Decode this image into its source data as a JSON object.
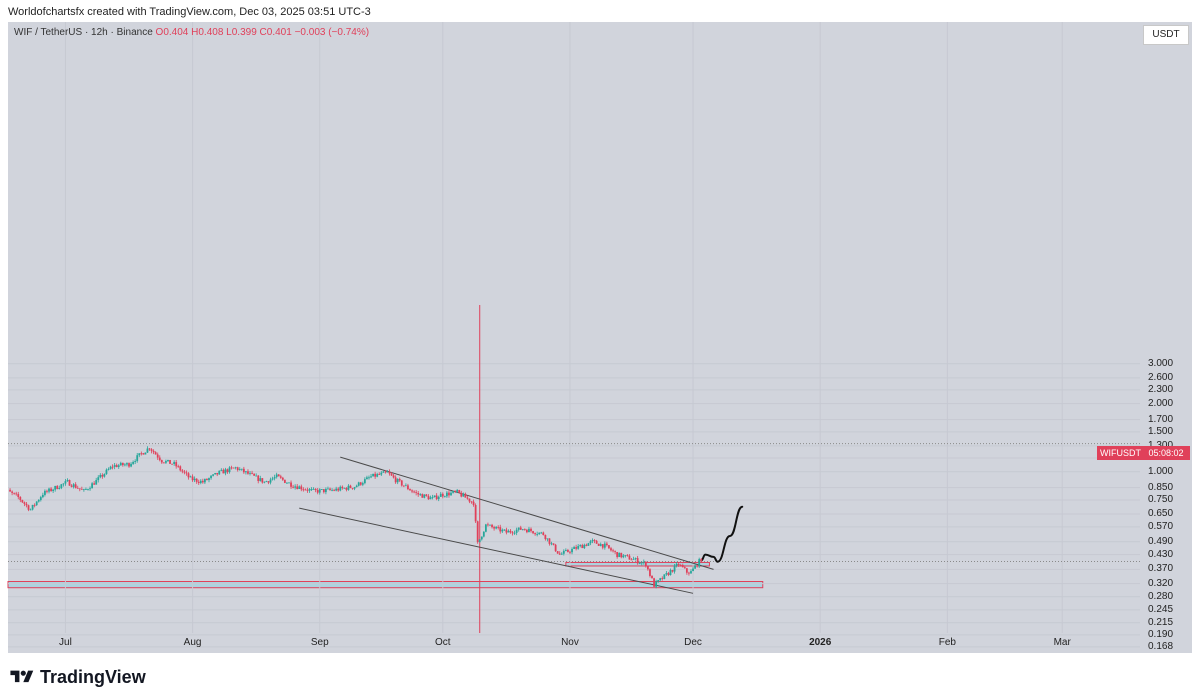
{
  "header": {
    "text": "Worldofchartsfx created with TradingView.com, Dec 03, 2025 03:51 UTC-3"
  },
  "symbol": {
    "name": "WIF / TetherUS · 12h · Binance",
    "open": "O0.404",
    "high": "H0.408",
    "low": "L0.399",
    "close": "C0.401",
    "change": "−0.003 (−0.74%)"
  },
  "currency": "USDT",
  "ticker": "WIFUSDT",
  "countdown": "05:08:02",
  "footer": {
    "brand": "TradingView"
  },
  "colors": {
    "up": "#26a69a",
    "down": "#e0405a",
    "background": "#d1d4dc",
    "zone_fill": "#9fd3e0",
    "zone_border": "#e0405a"
  },
  "chart_data": {
    "type": "candlestick",
    "y_scale": "log",
    "price_ticks": [
      "3.000",
      "2.600",
      "2.300",
      "2.000",
      "1.700",
      "1.500",
      "1.300",
      "1.150",
      "1.000",
      "0.850",
      "0.750",
      "0.650",
      "0.570",
      "0.490",
      "0.430",
      "0.370",
      "0.320",
      "0.280",
      "0.245",
      "0.215",
      "0.190",
      "0.168"
    ],
    "time_ticks": [
      {
        "label": "Jul",
        "date": "2025-07-01"
      },
      {
        "label": "Aug",
        "date": "2025-08-01"
      },
      {
        "label": "Sep",
        "date": "2025-09-01"
      },
      {
        "label": "Oct",
        "date": "2025-10-01"
      },
      {
        "label": "Nov",
        "date": "2025-11-01"
      },
      {
        "label": "Dec",
        "date": "2025-12-01"
      },
      {
        "label": "2026",
        "date": "2026-01-01",
        "bold": true
      },
      {
        "label": "Feb",
        "date": "2026-02-01"
      },
      {
        "label": "Mar",
        "date": "2026-03-01"
      }
    ],
    "price_path": [
      [
        "2025-06-15",
        0.87
      ],
      [
        "2025-06-20",
        0.77
      ],
      [
        "2025-06-23",
        0.68
      ],
      [
        "2025-06-26",
        0.8
      ],
      [
        "2025-07-02",
        0.9
      ],
      [
        "2025-07-06",
        0.82
      ],
      [
        "2025-07-09",
        0.91
      ],
      [
        "2025-07-13",
        1.06
      ],
      [
        "2025-07-17",
        1.08
      ],
      [
        "2025-07-20",
        1.2
      ],
      [
        "2025-07-22",
        1.28
      ],
      [
        "2025-07-25",
        1.12
      ],
      [
        "2025-07-28",
        1.08
      ],
      [
        "2025-08-01",
        0.93
      ],
      [
        "2025-08-04",
        0.9
      ],
      [
        "2025-08-08",
        0.99
      ],
      [
        "2025-08-12",
        1.04
      ],
      [
        "2025-08-16",
        0.96
      ],
      [
        "2025-08-19",
        0.9
      ],
      [
        "2025-08-22",
        0.95
      ],
      [
        "2025-08-26",
        0.87
      ],
      [
        "2025-08-31",
        0.82
      ],
      [
        "2025-09-05",
        0.83
      ],
      [
        "2025-09-10",
        0.86
      ],
      [
        "2025-09-14",
        0.95
      ],
      [
        "2025-09-18",
        0.99
      ],
      [
        "2025-09-20",
        0.92
      ],
      [
        "2025-09-25",
        0.8
      ],
      [
        "2025-09-29",
        0.76
      ],
      [
        "2025-10-01",
        0.79
      ],
      [
        "2025-10-05",
        0.81
      ],
      [
        "2025-10-09",
        0.73
      ],
      [
        "2025-10-10",
        0.48
      ],
      [
        "2025-10-12",
        0.58
      ],
      [
        "2025-10-17",
        0.54
      ],
      [
        "2025-10-21",
        0.56
      ],
      [
        "2025-10-26",
        0.53
      ],
      [
        "2025-10-30",
        0.43
      ],
      [
        "2025-11-03",
        0.46
      ],
      [
        "2025-11-07",
        0.49
      ],
      [
        "2025-11-10",
        0.47
      ],
      [
        "2025-11-13",
        0.43
      ],
      [
        "2025-11-17",
        0.41
      ],
      [
        "2025-11-20",
        0.39
      ],
      [
        "2025-11-22",
        0.315
      ],
      [
        "2025-11-25",
        0.35
      ],
      [
        "2025-11-28",
        0.39
      ],
      [
        "2025-11-30",
        0.36
      ],
      [
        "2025-12-01",
        0.36
      ],
      [
        "2025-12-03",
        0.401
      ]
    ],
    "projection_path": [
      [
        "2025-12-03",
        0.405
      ],
      [
        "2025-12-04",
        0.43
      ],
      [
        "2025-12-06",
        0.42
      ],
      [
        "2025-12-07",
        0.4
      ],
      [
        "2025-12-10",
        0.52
      ],
      [
        "2025-12-13",
        0.7
      ]
    ],
    "channel_upper": [
      [
        "2025-09-06",
        1.16
      ],
      [
        "2025-12-06",
        0.37
      ]
    ],
    "channel_lower": [
      [
        "2025-08-27",
        0.69
      ],
      [
        "2025-12-01",
        0.29
      ]
    ],
    "zones": [
      {
        "start": "2025-06-15",
        "end": "2025-12-18",
        "low": 0.307,
        "high": 0.327
      },
      {
        "start": "2025-10-31",
        "end": "2025-12-05",
        "low": 0.383,
        "high": 0.397
      }
    ],
    "vertical_marker": "2025-10-10",
    "horizontal_levels": [
      1.33,
      0.401
    ],
    "last_price": 0.401
  }
}
